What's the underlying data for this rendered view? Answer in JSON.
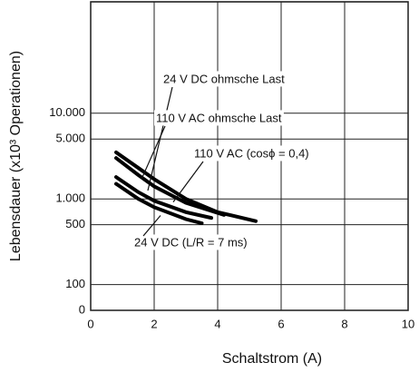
{
  "chart_data": {
    "type": "line",
    "x_label": "Schaltstrom (A)",
    "y_label": "Lebensdauer (x10³ Operationen)",
    "xlim": [
      0,
      10
    ],
    "xticks": [
      0,
      2,
      4,
      6,
      8,
      10
    ],
    "ylim": [
      50,
      200000
    ],
    "y_scale": "log",
    "yticks": [
      0,
      100,
      500,
      {
        "value": 1000,
        "label": "1.000"
      },
      {
        "value": 5000,
        "label": "5.000"
      },
      {
        "value": 10000,
        "label": "10.000"
      }
    ],
    "grid": true,
    "series": [
      {
        "name": "24 V DC ohmsche Last",
        "color": "#000000",
        "x": [
          0.8,
          1.5,
          2,
          3,
          4,
          5.2
        ],
        "values": [
          3500,
          2300,
          1700,
          1000,
          700,
          550
        ]
      },
      {
        "name": "110 V AC ohmsche Last",
        "color": "#000000",
        "x": [
          0.8,
          1.5,
          2,
          3,
          4.2
        ],
        "values": [
          3000,
          1900,
          1400,
          900,
          650
        ]
      },
      {
        "name": "110 V AC (cosϕ = 0,4)",
        "color": "#000000",
        "x": [
          0.8,
          1.5,
          2,
          3,
          3.8
        ],
        "values": [
          1800,
          1200,
          950,
          700,
          600
        ]
      },
      {
        "name": "24 V DC (L/R = 7 ms)",
        "color": "#000000",
        "x": [
          0.8,
          1.5,
          2,
          3,
          3.5
        ],
        "values": [
          1500,
          1000,
          800,
          580,
          520
        ]
      }
    ]
  }
}
